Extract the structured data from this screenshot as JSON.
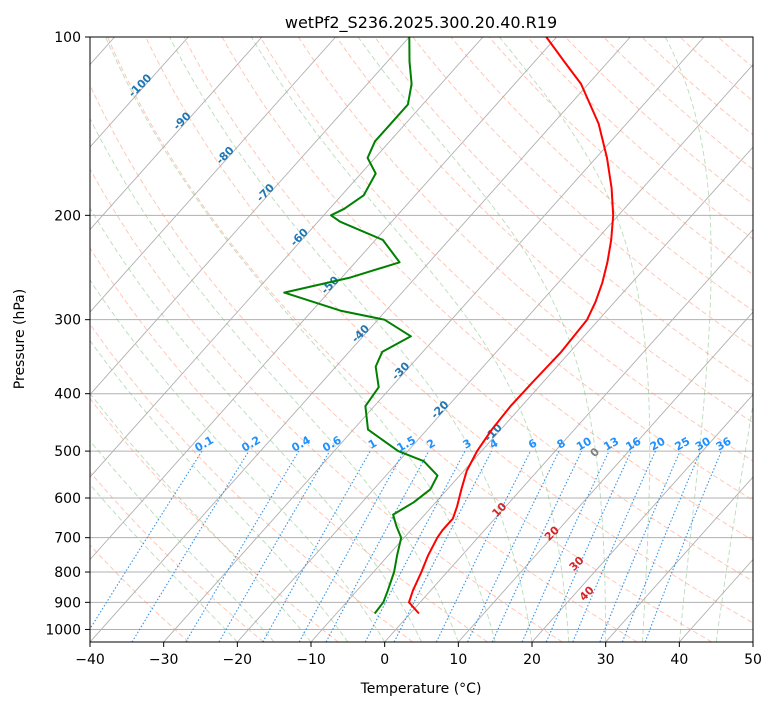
{
  "chart_data": {
    "type": "line",
    "title": "wetPf2_S236.2025.300.20.40.R19",
    "xlabel": "Temperature (°C)",
    "ylabel": "Pressure (hPa)",
    "xlim": [
      -40,
      50
    ],
    "ylim": [
      1050,
      100
    ],
    "y_scale": "log",
    "grid": true,
    "x_ticks": [
      -40,
      -30,
      -20,
      -10,
      0,
      10,
      20,
      30,
      40,
      50
    ],
    "x_tick_labels": [
      "−40",
      "−30",
      "−20",
      "−10",
      "0",
      "10",
      "20",
      "30",
      "40",
      "50"
    ],
    "y_ticks": [
      100,
      200,
      300,
      400,
      500,
      600,
      700,
      800,
      900,
      1000
    ],
    "y_tick_labels": [
      "100",
      "200",
      "300",
      "400",
      "500",
      "600",
      "700",
      "800",
      "900",
      "1000"
    ],
    "series": [
      {
        "color": "#ff0000",
        "points": [
          {
            "p": 940,
            "t": 1.2
          },
          {
            "p": 900,
            "t": -1.5
          },
          {
            "p": 860,
            "t": -2.4
          },
          {
            "p": 800,
            "t": -3.5
          },
          {
            "p": 750,
            "t": -4.6
          },
          {
            "p": 700,
            "t": -5.5
          },
          {
            "p": 680,
            "t": -5.7
          },
          {
            "p": 650,
            "t": -5.7
          },
          {
            "p": 620,
            "t": -6.6
          },
          {
            "p": 580,
            "t": -8.1
          },
          {
            "p": 540,
            "t": -9.6
          },
          {
            "p": 500,
            "t": -10.6
          },
          {
            "p": 460,
            "t": -11.2
          },
          {
            "p": 420,
            "t": -11.5
          },
          {
            "p": 380,
            "t": -11.4
          },
          {
            "p": 340,
            "t": -11.2
          },
          {
            "p": 300,
            "t": -11.6
          },
          {
            "p": 280,
            "t": -12.6
          },
          {
            "p": 260,
            "t": -14.0
          },
          {
            "p": 240,
            "t": -15.8
          },
          {
            "p": 220,
            "t": -18.0
          },
          {
            "p": 200,
            "t": -20.7
          },
          {
            "p": 180,
            "t": -24.2
          },
          {
            "p": 160,
            "t": -28.5
          },
          {
            "p": 140,
            "t": -33.8
          },
          {
            "p": 120,
            "t": -41.0
          },
          {
            "p": 110,
            "t": -46.0
          },
          {
            "p": 100,
            "t": -51.4
          }
        ]
      },
      {
        "color": "#008000",
        "points": [
          {
            "p": 940,
            "t": -4.8
          },
          {
            "p": 900,
            "t": -5.0
          },
          {
            "p": 860,
            "t": -5.8
          },
          {
            "p": 800,
            "t": -7.2
          },
          {
            "p": 750,
            "t": -8.8
          },
          {
            "p": 700,
            "t": -10.4
          },
          {
            "p": 670,
            "t": -12.4
          },
          {
            "p": 640,
            "t": -14.3
          },
          {
            "p": 610,
            "t": -13.0
          },
          {
            "p": 580,
            "t": -12.3
          },
          {
            "p": 550,
            "t": -13.0
          },
          {
            "p": 520,
            "t": -16.6
          },
          {
            "p": 500,
            "t": -21.3
          },
          {
            "p": 460,
            "t": -28.0
          },
          {
            "p": 420,
            "t": -31.2
          },
          {
            "p": 390,
            "t": -31.7
          },
          {
            "p": 360,
            "t": -34.6
          },
          {
            "p": 340,
            "t": -35.5
          },
          {
            "p": 320,
            "t": -33.5
          },
          {
            "p": 300,
            "t": -39.1
          },
          {
            "p": 290,
            "t": -46.0
          },
          {
            "p": 270,
            "t": -56.0
          },
          {
            "p": 255,
            "t": -49.0
          },
          {
            "p": 240,
            "t": -44.0
          },
          {
            "p": 220,
            "t": -49.0
          },
          {
            "p": 205,
            "t": -57.0
          },
          {
            "p": 200,
            "t": -59.0
          },
          {
            "p": 195,
            "t": -58.0
          },
          {
            "p": 185,
            "t": -57.0
          },
          {
            "p": 170,
            "t": -58.0
          },
          {
            "p": 160,
            "t": -61.0
          },
          {
            "p": 150,
            "t": -62.0
          },
          {
            "p": 140,
            "t": -62.0
          },
          {
            "p": 130,
            "t": -62.0
          },
          {
            "p": 120,
            "t": -64.0
          },
          {
            "p": 110,
            "t": -67.0
          },
          {
            "p": 100,
            "t": -70.0
          }
        ]
      }
    ],
    "dry_adiabat_labels": [
      "-100",
      "-90",
      "-80",
      "-70",
      "-60",
      "-50",
      "-40",
      "-30",
      "-20",
      "-10"
    ],
    "mixing_ratio_labels": [
      "0.1",
      "0.2",
      "0.4",
      "0.6",
      "1",
      "1.5",
      "2",
      "3",
      "4",
      "6",
      "8",
      "10",
      "13",
      "16",
      "20",
      "25",
      "30",
      "36"
    ],
    "moist_adiabat_labels": [
      "0",
      "10",
      "20",
      "30",
      "40"
    ],
    "colors": {
      "dry_adiabat": "#ff9070",
      "moist_adiabat": "#80c080",
      "mixing_ratio": "#1e88e5",
      "isotherm": "#808080",
      "dry_label": "#1f77b4",
      "mixing_label": "#1e90ff",
      "moist_label": "#d62728"
    }
  }
}
